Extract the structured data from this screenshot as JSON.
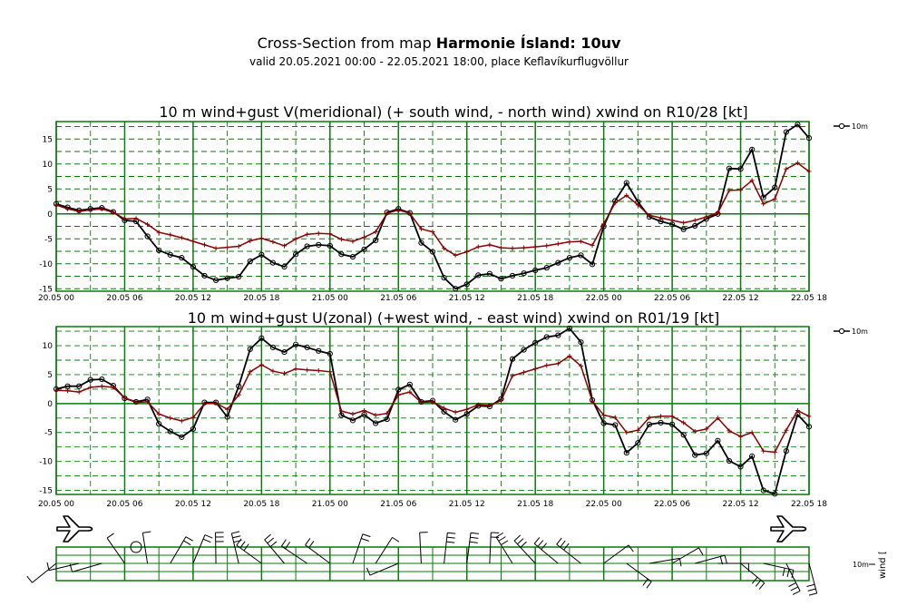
{
  "header": {
    "title_prefix": "Cross-Section from map ",
    "title_bold": "Harmonie Ísland: 10uv",
    "subtitle": "valid 20.05.2021 00:00 - 22.05.2021 18:00, place Keflavíkurflugvöllur"
  },
  "colors": {
    "grid": "#0a7a0a",
    "wind": "#000000",
    "gust": "#8b0000"
  },
  "chart_data": [
    {
      "type": "line",
      "title": "10 m wind+gust V(meridional) (+ south wind, - north wind) xwind on R10/28 [kt]",
      "legend": "10m",
      "x_tick_labels": [
        "20.05 00",
        "20.05 06",
        "20.05 12",
        "20.05 18",
        "21.05 00",
        "21.05 06",
        "21.05 12",
        "21.05 18",
        "22.05 00",
        "22.05 06",
        "22.05 12",
        "22.05 18"
      ],
      "y_ticks": [
        15,
        10,
        5,
        0,
        -5,
        -10,
        -15
      ],
      "ylim": [
        -15.5,
        18.5
      ],
      "x_hours": 66,
      "series": [
        {
          "name": "wind",
          "values": [
            2,
            1.3,
            0.7,
            1,
            1.2,
            0.4,
            -1.3,
            -1.5,
            -4.5,
            -7.3,
            -8.2,
            -8.8,
            -10.6,
            -12.4,
            -13.3,
            -12.9,
            -12.6,
            -9.5,
            -8.2,
            -9.8,
            -10.6,
            -8.1,
            -6.5,
            -6.2,
            -6.4,
            -8.1,
            -8.6,
            -7.1,
            -5.3,
            0.3,
            1,
            0.2,
            -5.8,
            -7.6,
            -12.8,
            -15,
            -14.1,
            -12.3,
            -12,
            -13,
            -12.4,
            -11.9,
            -11.3,
            -10.8,
            -9.8,
            -8.8,
            -8.3,
            -10.1,
            -2.5,
            2.6,
            6.2,
            2.4,
            -0.6,
            -1.5,
            -2.1,
            -3.1,
            -2.4,
            -1,
            0,
            9.1,
            9,
            12.9,
            3.3,
            5.3,
            16.4,
            17.9,
            15.2
          ]
        },
        {
          "name": "gust",
          "values": [
            1.8,
            1,
            0.5,
            0.8,
            1,
            0.3,
            -1,
            -0.9,
            -2.1,
            -3.7,
            -4.2,
            -4.8,
            -5.5,
            -6.2,
            -6.9,
            -6.7,
            -6.5,
            -5.4,
            -4.9,
            -5.6,
            -6.4,
            -5,
            -4.1,
            -3.9,
            -4,
            -5.1,
            -5.5,
            -4.7,
            -3.6,
            0.1,
            0.8,
            0.1,
            -3,
            -3.6,
            -6.9,
            -8.3,
            -7.6,
            -6.6,
            -6.2,
            -6.8,
            -6.9,
            -6.8,
            -6.6,
            -6.4,
            -6,
            -5.6,
            -5.5,
            -6.3,
            -2,
            2.2,
            3.7,
            1.8,
            -0.3,
            -0.8,
            -1.3,
            -1.8,
            -1.3,
            -0.6,
            0.2,
            4.7,
            4.8,
            6.7,
            2,
            3,
            9,
            10.2,
            8.5
          ]
        }
      ]
    },
    {
      "type": "line",
      "title": "10 m wind+gust U(zonal) (+west wind, - east wind) xwind on R01/19 [kt]",
      "legend": "10m",
      "x_tick_labels": [
        "20.05 00",
        "20.05 06",
        "20.05 12",
        "20.05 18",
        "21.05 00",
        "21.05 06",
        "21.05 12",
        "21.05 18",
        "22.05 00",
        "22.05 06",
        "22.05 12",
        "22.05 18"
      ],
      "y_ticks": [
        10,
        5,
        0,
        -5,
        -10,
        -15
      ],
      "ylim": [
        -15.7,
        13.3
      ],
      "x_hours": 66,
      "series": [
        {
          "name": "wind",
          "values": [
            2.5,
            3,
            3,
            4.1,
            4.2,
            3.1,
            0.9,
            0.3,
            0.7,
            -3.5,
            -4.8,
            -5.8,
            -4.4,
            0.2,
            0.2,
            -2.3,
            3,
            9.4,
            11.3,
            9.7,
            8.9,
            10.2,
            9.7,
            9.1,
            8.6,
            -2,
            -2.9,
            -1.9,
            -3.4,
            -2.7,
            2.4,
            3.3,
            0.3,
            0.5,
            -1.4,
            -2.8,
            -1.8,
            -0.4,
            -0.5,
            0.8,
            7.7,
            9.3,
            10.5,
            11.5,
            11.8,
            13,
            10.6,
            0.6,
            -3.4,
            -3.7,
            -8.5,
            -6.8,
            -3.6,
            -3.3,
            -3.6,
            -5.4,
            -8.9,
            -8.6,
            -6.4,
            -9.9,
            -10.9,
            -9.1,
            -15,
            -15.6,
            -8.2,
            -1.9,
            -4
          ]
        },
        {
          "name": "gust",
          "values": [
            2.3,
            2.2,
            2,
            2.8,
            3,
            2.8,
            1,
            0.2,
            0.3,
            -1.8,
            -2.5,
            -3,
            -2.4,
            0,
            0.1,
            -1,
            1.5,
            5.5,
            6.7,
            5.6,
            5.2,
            6,
            5.8,
            5.7,
            5.5,
            -1.3,
            -1.8,
            -1.2,
            -2,
            -1.7,
            1.5,
            2,
            0.2,
            0.3,
            -0.8,
            -1.5,
            -1,
            -0.2,
            -0.3,
            0.5,
            4.8,
            5.4,
            6,
            6.6,
            6.9,
            8.2,
            6.5,
            0.4,
            -2,
            -2.4,
            -5,
            -4.6,
            -2.4,
            -2.2,
            -2.2,
            -3.3,
            -4.8,
            -4.4,
            -2.5,
            -4.7,
            -5.7,
            -5,
            -8.2,
            -8.4,
            -4.6,
            -1.2,
            -2.2
          ]
        }
      ]
    }
  ],
  "wind_panel": {
    "legend": "10m",
    "side_label": "wind ["
  }
}
